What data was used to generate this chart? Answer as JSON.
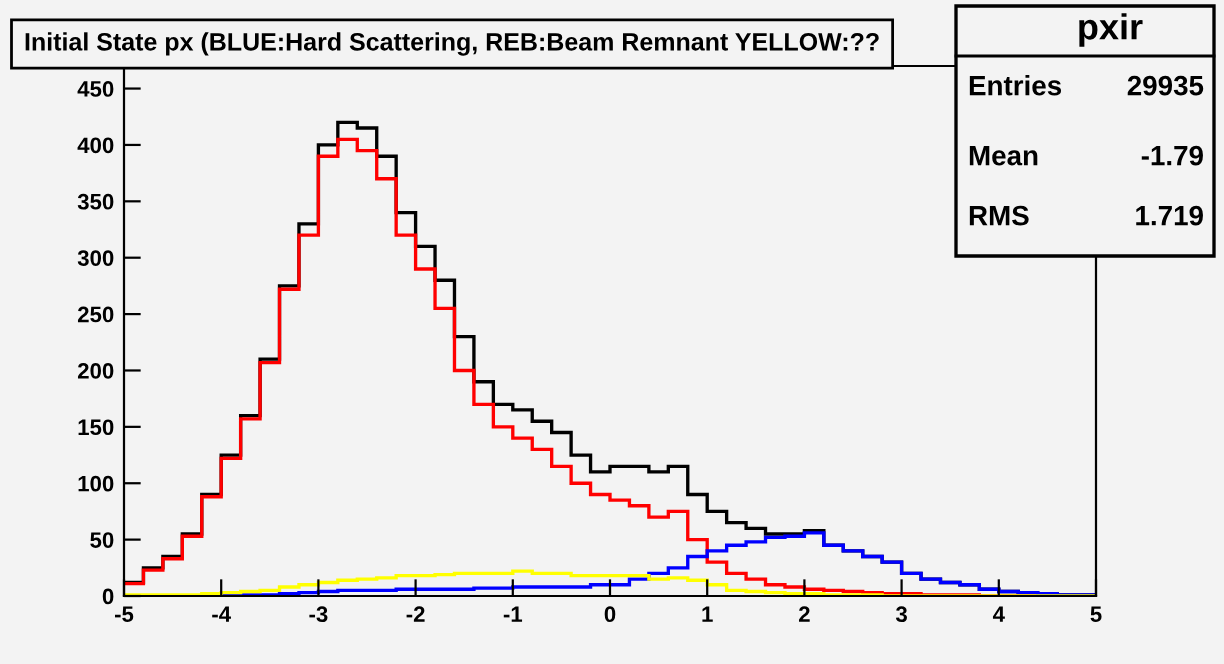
{
  "chart_data": {
    "type": "histogram",
    "title": "Initial State px (BLUE:Hard Scattering, REB:Beam Remnant YELLOW:??",
    "annotations": [
      "pxir",
      "Entries",
      "29935",
      "Mean",
      "-1.79",
      "RMS",
      "1.719"
    ],
    "bins": [
      -5.0,
      -4.8,
      -4.6,
      -4.4,
      -4.2,
      -4.0,
      -3.8,
      -3.6,
      -3.4,
      -3.2,
      -3.0,
      -2.8,
      -2.6,
      -2.4,
      -2.2,
      -2.0,
      -1.8,
      -1.6,
      -1.4,
      -1.2,
      -1.0,
      -0.8,
      -0.6,
      -0.4,
      -0.2,
      0.0,
      0.2,
      0.4,
      0.6,
      0.8,
      1.0,
      1.2,
      1.4,
      1.6,
      1.8,
      2.0,
      2.2,
      2.4,
      2.6,
      2.8,
      3.0,
      3.2,
      3.4,
      3.6,
      3.8,
      4.0,
      4.2,
      4.4,
      4.6,
      4.8,
      5.0
    ],
    "series": [
      {
        "color": "#000000",
        "values": [
          12,
          25,
          35,
          55,
          90,
          125,
          160,
          210,
          275,
          330,
          400,
          420,
          415,
          390,
          340,
          310,
          280,
          230,
          190,
          170,
          165,
          155,
          145,
          125,
          110,
          115,
          115,
          110,
          115,
          90,
          75,
          65,
          60,
          55,
          55,
          58,
          45,
          40,
          35,
          30,
          20,
          15,
          12,
          10,
          6,
          4,
          3,
          2,
          1,
          1
        ]
      },
      {
        "color": "#ff0000",
        "values": [
          11,
          23,
          33,
          53,
          88,
          122,
          157,
          207,
          272,
          320,
          390,
          405,
          395,
          370,
          320,
          290,
          255,
          200,
          170,
          150,
          140,
          130,
          115,
          100,
          90,
          85,
          80,
          70,
          75,
          50,
          30,
          20,
          15,
          10,
          8,
          6,
          5,
          4,
          3,
          2,
          2,
          1,
          1,
          1,
          0,
          0,
          0,
          0,
          0,
          0
        ]
      },
      {
        "color": "#0000ff",
        "values": [
          0,
          0,
          0,
          0,
          0,
          1,
          1,
          1,
          2,
          3,
          4,
          5,
          5,
          5,
          6,
          6,
          6,
          6,
          7,
          7,
          8,
          8,
          8,
          8,
          10,
          10,
          15,
          20,
          25,
          35,
          40,
          45,
          48,
          52,
          53,
          56,
          45,
          40,
          35,
          30,
          20,
          15,
          12,
          10,
          6,
          4,
          3,
          2,
          1,
          1
        ]
      },
      {
        "color": "#ffff00",
        "values": [
          1,
          1,
          1,
          1,
          2,
          3,
          4,
          5,
          8,
          10,
          12,
          14,
          15,
          16,
          18,
          18,
          19,
          20,
          20,
          20,
          22,
          20,
          20,
          18,
          18,
          18,
          18,
          15,
          16,
          14,
          10,
          5,
          4,
          3,
          2,
          2,
          1,
          1,
          1,
          0,
          0,
          0,
          0,
          0,
          0,
          0,
          0,
          0,
          0,
          0
        ]
      }
    ],
    "xlim": [
      -5,
      5
    ],
    "ylim": [
      0,
      470
    ],
    "xticks": [
      -5,
      -4,
      -3,
      -2,
      -1,
      0,
      1,
      2,
      3,
      4,
      5
    ],
    "yticks": [
      0,
      50,
      100,
      150,
      200,
      250,
      300,
      350,
      400,
      450
    ],
    "grid": false
  }
}
